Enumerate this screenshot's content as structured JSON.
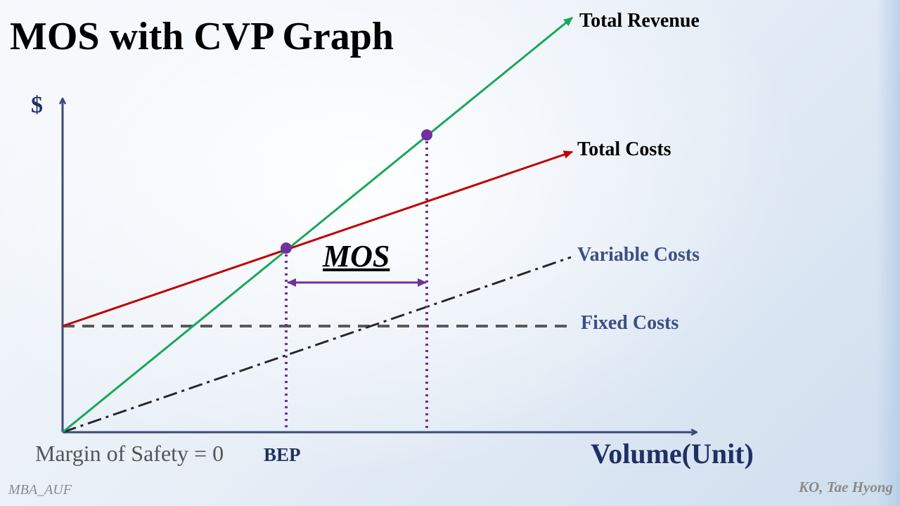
{
  "slide": {
    "title": "MOS with CVP Graph",
    "footer_left": "MBA_AUF",
    "footer_right": "KO, Tae Hyong"
  },
  "diagram": {
    "y_axis_label": "$",
    "x_axis_label": "Volume(Unit)",
    "lines": {
      "total_revenue": "Total Revenue",
      "total_costs": "Total Costs",
      "variable_costs": "Variable Costs",
      "fixed_costs": "Fixed Costs"
    },
    "mos_label": "MOS",
    "bep_label": "BEP",
    "margin_text": "Margin of Safety = 0",
    "colors": {
      "total_revenue": "#17a85a",
      "total_costs": "#c00000",
      "variable_costs": "#262626",
      "fixed_costs": "#595959",
      "axes": "#3c4a7a",
      "mos_marker": "#7030a0"
    }
  }
}
